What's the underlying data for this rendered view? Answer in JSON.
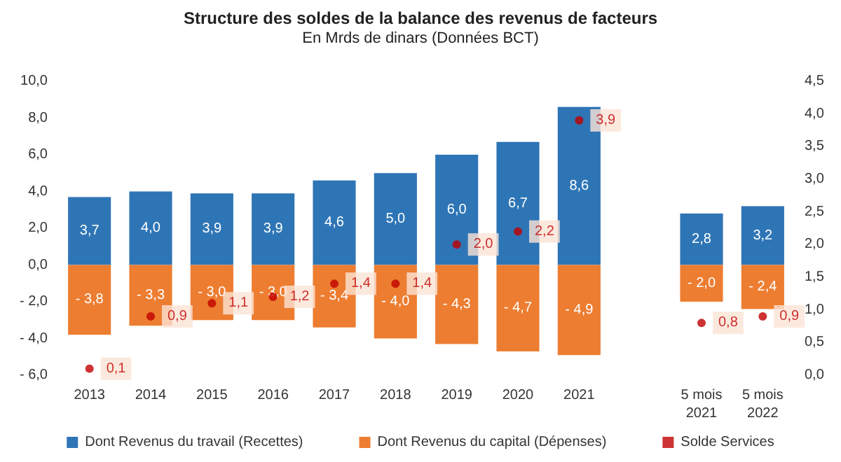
{
  "chart_data": {
    "type": "bar",
    "title": "Structure des soldes de la balance des revenus de facteurs",
    "subtitle": "En Mrds de dinars (Données BCT)",
    "categories": [
      "2013",
      "2014",
      "2015",
      "2016",
      "2017",
      "2018",
      "2019",
      "2020",
      "2021",
      null,
      "5 mois\n2021",
      "5 mois\n2022"
    ],
    "stacked": true,
    "series": [
      {
        "name": "Dont Revenus du travail (Recettes)",
        "color": "#2e75b6",
        "values": [
          3.7,
          4.0,
          3.9,
          3.9,
          4.6,
          5.0,
          6.0,
          6.7,
          8.6,
          null,
          2.8,
          3.2
        ],
        "value_labels": [
          "3,7",
          "4,0",
          "3,9",
          "3,9",
          "4,6",
          "5,0",
          "6,0",
          "6,7",
          "8,6",
          null,
          "2,8",
          "3,2"
        ]
      },
      {
        "name": "Dont Revenus du capital (Dépenses)",
        "color": "#ed7d31",
        "values": [
          -3.8,
          -3.3,
          -3.0,
          -3.0,
          -3.4,
          -4.0,
          -4.3,
          -4.7,
          -4.9,
          null,
          -2.0,
          -2.4
        ],
        "value_labels": [
          "- 3,8",
          "- 3,3",
          "- 3,0",
          "- 3,0",
          "- 3,4",
          "- 4,0",
          "- 4,3",
          "- 4,7",
          "- 4,9",
          null,
          "- 2,0",
          "- 2,4"
        ]
      },
      {
        "name": "Solde Services",
        "type": "scatter",
        "axis": "y2",
        "color": "#c00000",
        "values": [
          0.1,
          0.9,
          1.1,
          1.2,
          1.4,
          1.4,
          2.0,
          2.2,
          3.9,
          null,
          0.8,
          0.9
        ],
        "value_labels": [
          "0,1",
          "0,9",
          "1,1",
          "1,2",
          "1,4",
          "1,4",
          "2,0",
          "2,2",
          "3,9",
          null,
          "0,8",
          "0,9"
        ]
      }
    ],
    "ylim": [
      -6,
      10
    ],
    "yticks": [
      {
        "value": -6,
        "label": "- 6,0"
      },
      {
        "value": -4,
        "label": "- 4,0"
      },
      {
        "value": -2,
        "label": "- 2,0"
      },
      {
        "value": 0,
        "label": "0,0"
      },
      {
        "value": 2,
        "label": "2,0"
      },
      {
        "value": 4,
        "label": "4,0"
      },
      {
        "value": 6,
        "label": "6,0"
      },
      {
        "value": 8,
        "label": "8,0"
      },
      {
        "value": 10,
        "label": "10,0"
      }
    ],
    "y2lim": [
      0,
      4.5
    ],
    "y2ticks": [
      {
        "value": 0,
        "label": "0,0"
      },
      {
        "value": 0.5,
        "label": "0,5"
      },
      {
        "value": 1,
        "label": "1,0"
      },
      {
        "value": 1.5,
        "label": "1,5"
      },
      {
        "value": 2,
        "label": "2,0"
      },
      {
        "value": 2.5,
        "label": "2,5"
      },
      {
        "value": 3,
        "label": "3,0"
      },
      {
        "value": 3.5,
        "label": "3,5"
      },
      {
        "value": 4,
        "label": "4,0"
      },
      {
        "value": 4.5,
        "label": "4,5"
      }
    ],
    "marker": "circle",
    "grid": false,
    "legend": "bottom"
  }
}
